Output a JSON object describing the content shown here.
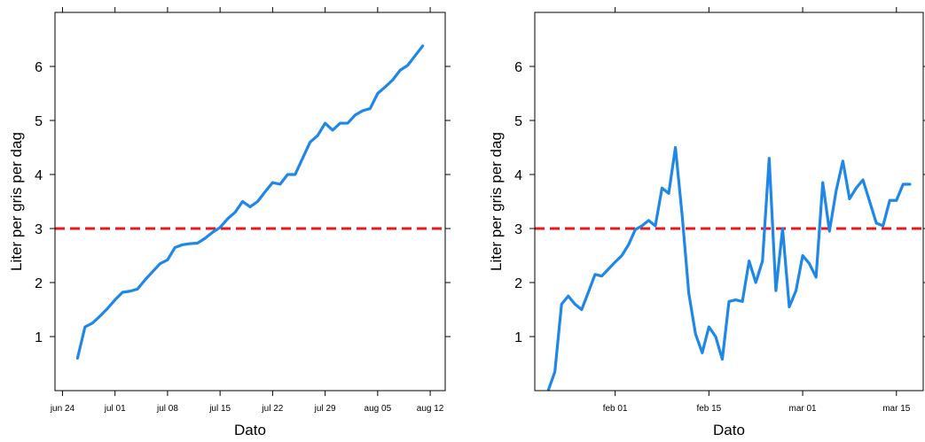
{
  "chart_data": [
    {
      "type": "line",
      "xlabel": "Dato",
      "ylabel": "Liter per gris per dag",
      "x_ticks": [
        "jun 24",
        "jul 01",
        "jul 08",
        "jul 15",
        "jul 22",
        "jul 29",
        "aug 05",
        "aug 12"
      ],
      "y_ticks": [
        "1",
        "2",
        "3",
        "4",
        "5",
        "6"
      ],
      "xlim": [
        "2023-06-23",
        "2023-08-14"
      ],
      "ylim": [
        0,
        7
      ],
      "grid": false,
      "series_color": "#1f87e8",
      "reference_line": {
        "y": 3,
        "color": "#e8191b",
        "style": "dashed"
      },
      "series": [
        {
          "x": [
            "2023-06-26",
            "2023-06-27",
            "2023-06-28",
            "2023-06-29",
            "2023-06-30",
            "2023-07-01",
            "2023-07-02",
            "2023-07-03",
            "2023-07-04",
            "2023-07-05",
            "2023-07-06",
            "2023-07-07",
            "2023-07-08",
            "2023-07-09",
            "2023-07-10",
            "2023-07-11",
            "2023-07-12",
            "2023-07-13",
            "2023-07-14",
            "2023-07-15",
            "2023-07-16",
            "2023-07-17",
            "2023-07-18",
            "2023-07-19",
            "2023-07-20",
            "2023-07-21",
            "2023-07-22",
            "2023-07-23",
            "2023-07-24",
            "2023-07-25",
            "2023-07-26",
            "2023-07-27",
            "2023-07-28",
            "2023-07-29",
            "2023-07-30",
            "2023-07-31",
            "2023-08-01",
            "2023-08-02",
            "2023-08-03",
            "2023-08-04",
            "2023-08-05",
            "2023-08-06",
            "2023-08-07",
            "2023-08-08",
            "2023-08-09",
            "2023-08-10",
            "2023-08-11"
          ],
          "y": [
            0.6,
            1.18,
            1.25,
            1.38,
            1.52,
            1.68,
            1.82,
            1.84,
            1.88,
            2.05,
            2.2,
            2.35,
            2.42,
            2.65,
            2.7,
            2.72,
            2.73,
            2.82,
            2.93,
            3.02,
            3.18,
            3.3,
            3.5,
            3.4,
            3.5,
            3.68,
            3.85,
            3.82,
            4.0,
            4.0,
            4.3,
            4.6,
            4.72,
            4.95,
            4.82,
            4.95,
            4.95,
            5.1,
            5.18,
            5.22,
            5.5,
            5.62,
            5.75,
            5.93,
            6.02,
            6.2,
            6.38
          ]
        }
      ]
    },
    {
      "type": "line",
      "xlabel": "Dato",
      "ylabel": "Liter per gris per dag",
      "x_ticks": [
        "feb 01",
        "feb 15",
        "mar 01",
        "mar 15"
      ],
      "y_ticks": [
        "1",
        "2",
        "3",
        "4",
        "5",
        "6"
      ],
      "xlim": [
        "2023-01-20",
        "2023-03-19"
      ],
      "ylim": [
        0,
        7
      ],
      "grid": false,
      "series_color": "#1f87e8",
      "reference_line": {
        "y": 3,
        "color": "#e8191b",
        "style": "dashed"
      },
      "series": [
        {
          "x": [
            "2023-01-22",
            "2023-01-23",
            "2023-01-24",
            "2023-01-25",
            "2023-01-26",
            "2023-01-27",
            "2023-01-28",
            "2023-01-29",
            "2023-01-30",
            "2023-01-31",
            "2023-02-01",
            "2023-02-02",
            "2023-02-03",
            "2023-02-04",
            "2023-02-05",
            "2023-02-06",
            "2023-02-07",
            "2023-02-08",
            "2023-02-09",
            "2023-02-10",
            "2023-02-11",
            "2023-02-12",
            "2023-02-13",
            "2023-02-14",
            "2023-02-15",
            "2023-02-16",
            "2023-02-17",
            "2023-02-18",
            "2023-02-19",
            "2023-02-20",
            "2023-02-21",
            "2023-02-22",
            "2023-02-23",
            "2023-02-24",
            "2023-02-25",
            "2023-02-26",
            "2023-02-27",
            "2023-02-28",
            "2023-03-01",
            "2023-03-02",
            "2023-03-03",
            "2023-03-04",
            "2023-03-05",
            "2023-03-06",
            "2023-03-07",
            "2023-03-08",
            "2023-03-09",
            "2023-03-10",
            "2023-03-11",
            "2023-03-12",
            "2023-03-13",
            "2023-03-14",
            "2023-03-15",
            "2023-03-16",
            "2023-03-17"
          ],
          "y": [
            0,
            0.35,
            1.6,
            1.75,
            1.6,
            1.5,
            1.82,
            2.15,
            2.12,
            2.25,
            2.38,
            2.5,
            2.7,
            2.98,
            3.05,
            3.15,
            3.05,
            3.75,
            3.65,
            4.5,
            3.25,
            1.8,
            1.05,
            0.7,
            1.18,
            1.0,
            0.58,
            1.65,
            1.68,
            1.65,
            2.4,
            2.0,
            2.4,
            4.3,
            1.85,
            3.0,
            1.55,
            1.85,
            2.5,
            2.35,
            2.1,
            3.85,
            2.95,
            3.7,
            4.25,
            3.55,
            3.75,
            3.9,
            3.5,
            3.1,
            3.05,
            3.52,
            3.52,
            3.82,
            3.82
          ]
        }
      ]
    }
  ]
}
